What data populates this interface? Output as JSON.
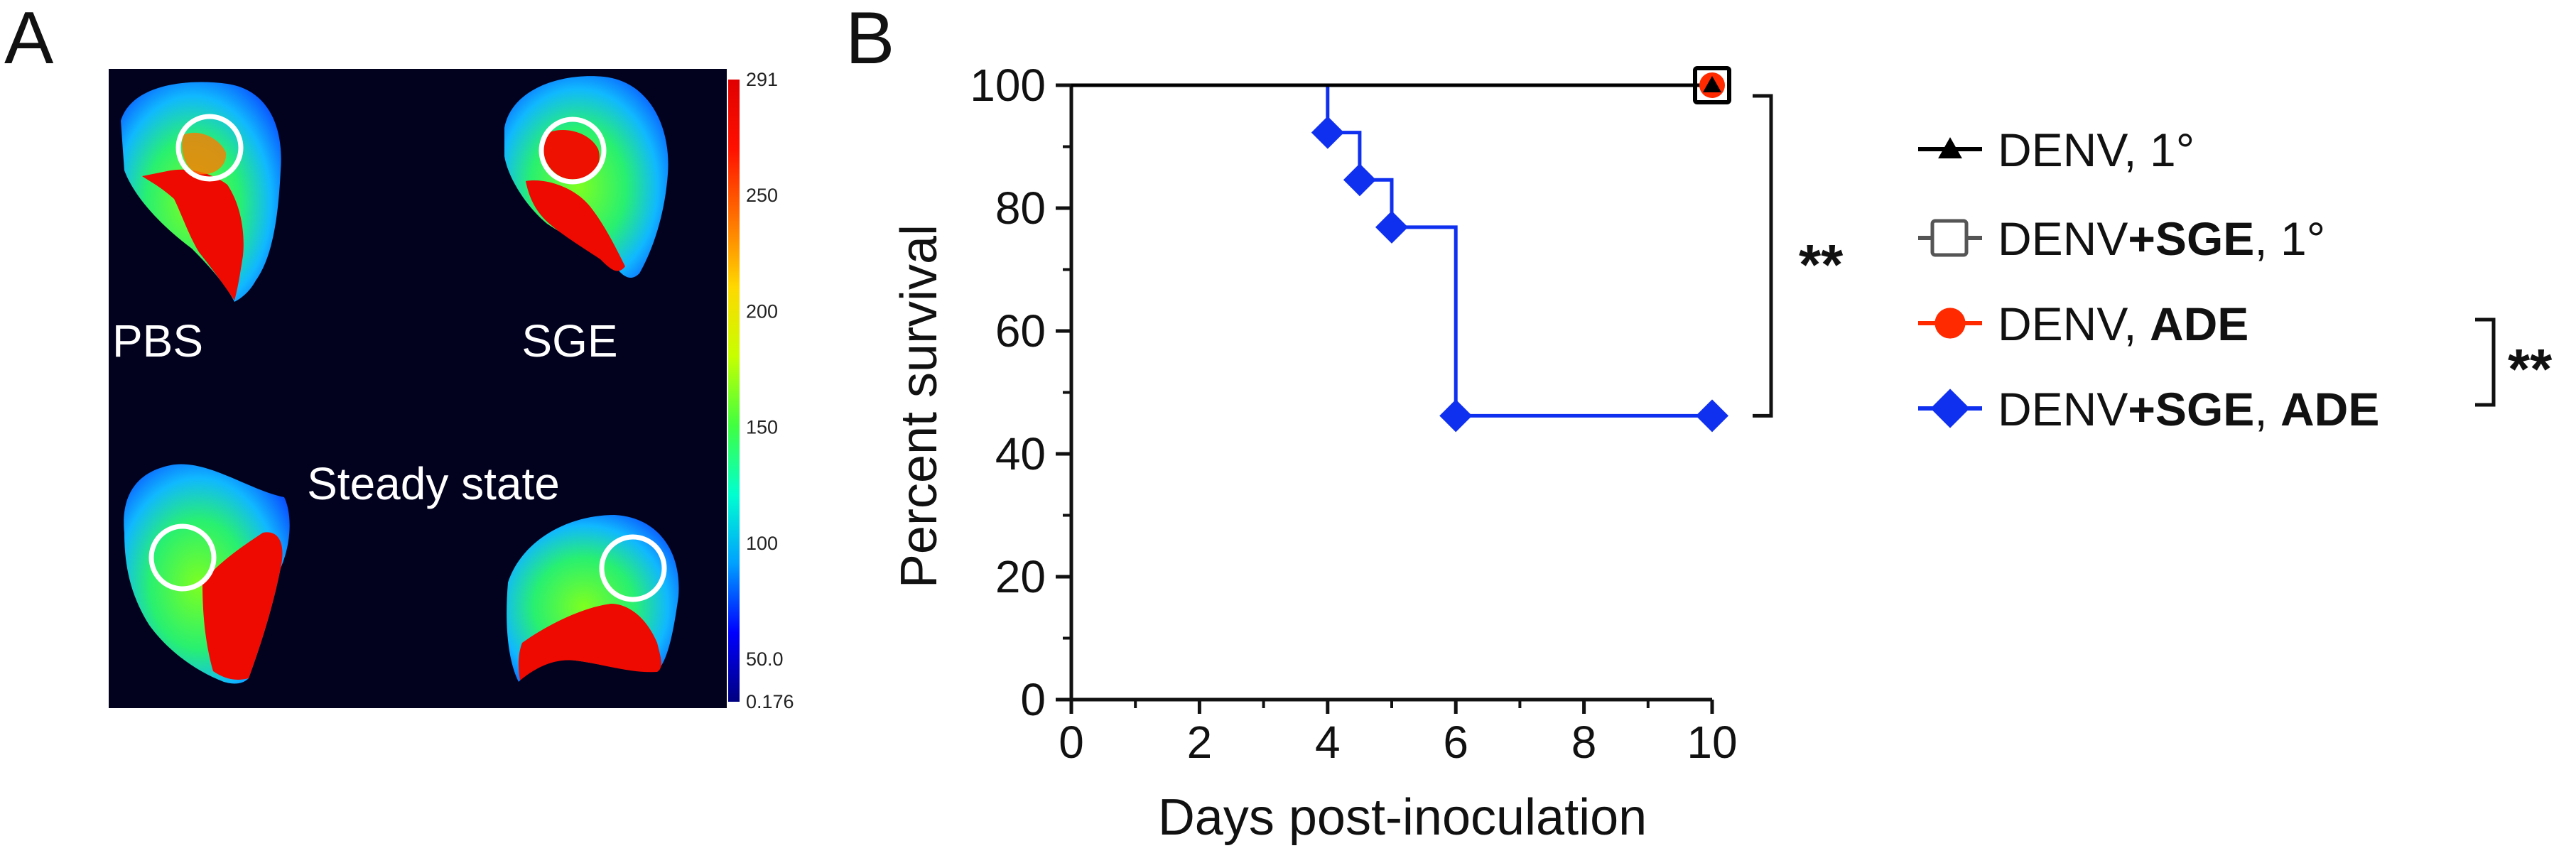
{
  "panel_a": {
    "letter": "A",
    "labels": {
      "top_left": "PBS",
      "top_right": "SGE",
      "middle": "Steady state"
    },
    "colorbar": {
      "ticks": [
        "291",
        "250",
        "200",
        "150",
        "100",
        "50.0",
        "0.176"
      ],
      "colors": [
        "#000080",
        "#0000ff",
        "#00a0ff",
        "#00ffd0",
        "#40ff40",
        "#c8ff00",
        "#ffd800",
        "#ff7000",
        "#ff1000",
        "#e00000"
      ]
    }
  },
  "panel_b": {
    "letter": "B",
    "chart_data": {
      "type": "line",
      "subtype": "kaplan-meier step plot",
      "xlabel": "Days post-inoculation",
      "ylabel": "Percent survival",
      "xlim": [
        0,
        10
      ],
      "ylim": [
        0,
        100
      ],
      "xticks": [
        "0",
        "2",
        "4",
        "6",
        "8",
        "10"
      ],
      "yticks": [
        "0",
        "20",
        "40",
        "60",
        "80",
        "100"
      ],
      "legend_position": "right",
      "series": [
        {
          "name_parts": [
            {
              "t": "DENV, 1°",
              "bold": false
            }
          ],
          "color": "#000000",
          "marker": "triangle",
          "steps": [
            [
              0,
              100
            ],
            [
              10,
              100
            ]
          ],
          "points": [
            [
              10,
              100
            ]
          ]
        },
        {
          "name_parts": [
            {
              "t": "DENV",
              "bold": false
            },
            {
              "t": "+SGE",
              "bold": true
            },
            {
              "t": ", 1°",
              "bold": false
            }
          ],
          "color": "#555555",
          "marker": "open-square",
          "steps": [
            [
              0,
              100
            ],
            [
              10,
              100
            ]
          ],
          "points": [
            [
              10,
              100
            ]
          ]
        },
        {
          "name_parts": [
            {
              "t": "DENV, ",
              "bold": false
            },
            {
              "t": "ADE",
              "bold": true
            }
          ],
          "color": "#ff2a00",
          "marker": "circle",
          "steps": [
            [
              0,
              100
            ],
            [
              10,
              100
            ]
          ],
          "points": [
            [
              10,
              100
            ]
          ]
        },
        {
          "name_parts": [
            {
              "t": "DENV",
              "bold": false
            },
            {
              "t": "+SGE",
              "bold": true
            },
            {
              "t": ", ",
              "bold": false
            },
            {
              "t": "ADE",
              "bold": true
            }
          ],
          "color": "#1030f0",
          "marker": "diamond",
          "steps": [
            [
              0,
              100
            ],
            [
              4,
              100
            ],
            [
              4,
              92.3
            ],
            [
              4.5,
              92.3
            ],
            [
              4.5,
              84.6
            ],
            [
              5,
              84.6
            ],
            [
              5,
              76.9
            ],
            [
              6,
              76.9
            ],
            [
              6,
              46.2
            ],
            [
              10,
              46.2
            ]
          ],
          "points": [
            [
              4,
              92.3
            ],
            [
              4.5,
              84.6
            ],
            [
              5,
              76.9
            ],
            [
              6,
              46.2
            ],
            [
              10,
              46.2
            ]
          ]
        }
      ],
      "annotations": [
        {
          "text": "**",
          "spans": "DENV, 1° vs DENV+SGE, ADE"
        },
        {
          "text": "**",
          "spans": "DENV, ADE vs DENV+SGE, ADE"
        }
      ]
    }
  }
}
